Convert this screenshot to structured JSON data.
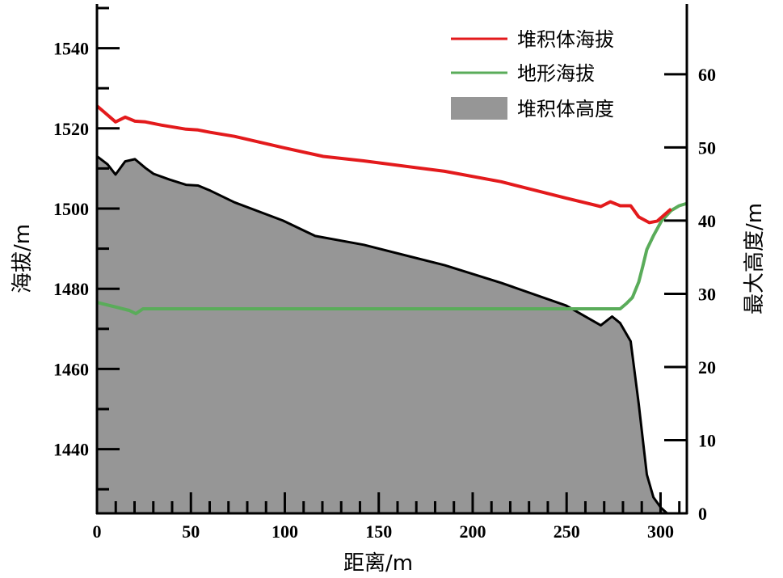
{
  "chart_data": {
    "type": "line",
    "xlabel": "距离/m",
    "ylabel": "海拔/m",
    "y2label": "最大高度/m",
    "xlim": [
      0,
      314
    ],
    "ylim": [
      1424,
      1551
    ],
    "y2lim": [
      0,
      69.6
    ],
    "xticks": [
      0,
      50,
      100,
      150,
      200,
      250,
      300
    ],
    "yticks": [
      1440,
      1460,
      1480,
      1500,
      1520,
      1540
    ],
    "y2ticks": [
      0,
      10,
      20,
      30,
      40,
      50,
      60
    ],
    "grid": false,
    "legend_position": "top-right",
    "series": [
      {
        "name": "堆积体海拔",
        "axis": "left",
        "kind": "line",
        "color": "#e31a1c",
        "x": [
          0,
          9.9,
          15,
          20.2,
          25.8,
          34.4,
          47.4,
          53.8,
          60.3,
          73.2,
          99,
          120.5,
          142,
          185.1,
          215.2,
          249.7,
          268.2,
          273.3,
          278.5,
          284.1,
          288.4,
          294,
          298.3,
          302.2,
          305.6
        ],
        "y": [
          1525.6,
          1521.6,
          1522.8,
          1521.8,
          1521.6,
          1520.8,
          1519.8,
          1519.6,
          1519.0,
          1518.0,
          1515.2,
          1513.0,
          1511.9,
          1509.3,
          1506.7,
          1502.6,
          1500.5,
          1501.7,
          1500.7,
          1500.7,
          1497.9,
          1496.5,
          1496.9,
          1498.5,
          1499.9
        ]
      },
      {
        "name": "地形海拔",
        "axis": "left",
        "kind": "line",
        "color": "#5aac5a",
        "x": [
          0,
          8.6,
          17.2,
          20.7,
          24.5,
          77.5,
          278.5,
          282,
          285,
          288.4,
          290.6,
          292.7,
          296.2,
          300.5,
          305.6,
          309.9,
          314.2
        ],
        "y": [
          1476.6,
          1475.6,
          1474.6,
          1473.8,
          1475.0,
          1475.0,
          1475.0,
          1476.4,
          1477.8,
          1481.7,
          1485.7,
          1489.8,
          1493.2,
          1496.9,
          1499.5,
          1500.7,
          1501.3
        ]
      },
      {
        "name": "堆积体高度",
        "axis": "right",
        "kind": "area",
        "color": "#969696",
        "x": [
          0,
          5.6,
          9.9,
          15,
          20.2,
          25.8,
          30.1,
          38.7,
          47.4,
          53.8,
          60.3,
          73.2,
          99,
          116.2,
          142,
          185.1,
          215.2,
          249.7,
          268.2,
          274.2,
          278.5,
          284.1,
          288.4,
          292.7,
          296.2,
          300.1,
          303.5
        ],
        "y": [
          48.8,
          47.7,
          46.3,
          48.1,
          48.4,
          47.2,
          46.4,
          45.6,
          44.9,
          44.8,
          44.1,
          42.5,
          40.0,
          37.9,
          36.7,
          33.9,
          31.5,
          28.4,
          25.7,
          26.9,
          26.0,
          23.5,
          14.9,
          5.3,
          2.2,
          0.8,
          0
        ]
      }
    ]
  }
}
